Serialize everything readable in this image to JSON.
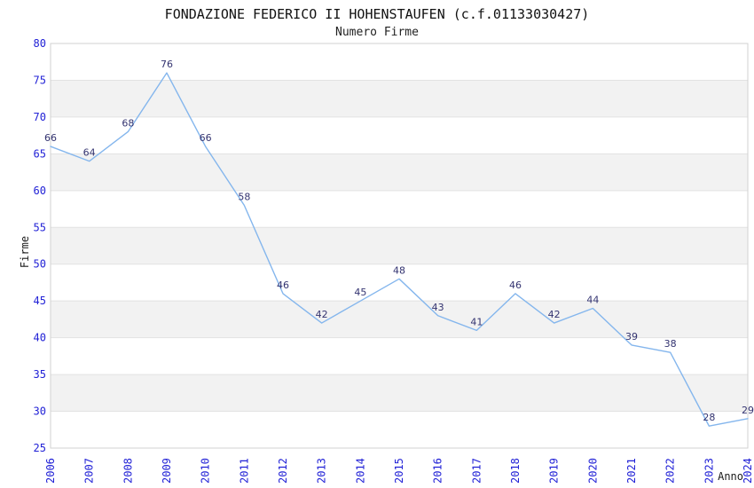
{
  "header": {
    "title": "FONDAZIONE FEDERICO II HOHENSTAUFEN (c.f.01133030427)",
    "subtitle": "Numero Firme"
  },
  "chart_data": {
    "type": "line",
    "title": "FONDAZIONE FEDERICO II HOHENSTAUFEN (c.f.01133030427)",
    "subtitle": "Numero Firme",
    "x": [
      "2006",
      "2007",
      "2008",
      "2009",
      "2010",
      "2011",
      "2012",
      "2013",
      "2014",
      "2015",
      "2016",
      "2017",
      "2018",
      "2019",
      "2020",
      "2021",
      "2022",
      "2023",
      "2024"
    ],
    "series": [
      {
        "name": "Numero Firme",
        "values": [
          66,
          64,
          68,
          76,
          66,
          58,
          46,
          42,
          45,
          48,
          43,
          41,
          46,
          42,
          44,
          39,
          38,
          28,
          29
        ]
      }
    ],
    "xlabel": "Anno",
    "ylabel": "Firme",
    "ylim": [
      25,
      80
    ],
    "ytick_step": 5,
    "yticks": [
      25,
      30,
      35,
      40,
      45,
      50,
      55,
      60,
      65,
      70,
      75,
      80
    ],
    "grid": true,
    "legend_position": "none",
    "band_pattern": "alternating-horizontal",
    "data_labels": true,
    "colors": {
      "line": "#84b6ed",
      "tick_label": "#2121d6",
      "data_label": "#333370",
      "band_gray": "#f2f2f2",
      "band_white": "#ffffff",
      "grid_line": "#e2e2e2",
      "plot_border": "#d2d2d2",
      "text": "#1a1a1a"
    }
  }
}
